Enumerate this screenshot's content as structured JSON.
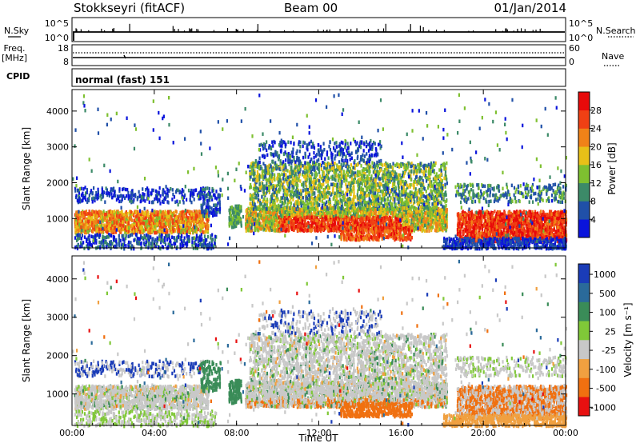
{
  "header": {
    "station": "Stokkseyri (fitACF)",
    "beam": "Beam 00",
    "date": "01/Jan/2014"
  },
  "top_panels": {
    "nsky_label": "N.Sky",
    "nsky_ticks": [
      "10^5",
      "10^0"
    ],
    "nsearch_label": "N.Search",
    "nsearch_ticks": [
      "10^5",
      "10^0"
    ],
    "freq_label_1": "Freq.",
    "freq_label_2": "[MHz]",
    "freq_ticks": [
      "18",
      "8"
    ],
    "nave_label": "Nave",
    "nave_ticks": [
      "60",
      "0"
    ],
    "cpid_label": "CPID",
    "cpid_value": "normal (fast) 151"
  },
  "chart_data": [
    {
      "type": "heatmap",
      "name": "power",
      "ylabel": "Slant Range [km]",
      "xlabel": "Time UT",
      "x_ticks": [
        "00:00",
        "04:00",
        "08:00",
        "12:00",
        "16:00",
        "20:00",
        "00:00"
      ],
      "x_hours": [
        0,
        4,
        8,
        12,
        16,
        20,
        24
      ],
      "xlim_hours": [
        0,
        24
      ],
      "y_ticks": [
        1000,
        2000,
        3000,
        4000
      ],
      "ylim": [
        180,
        4600
      ],
      "colorbar_label": "Power [dB]",
      "colorbar_ticks": [
        "4",
        "8",
        "12",
        "16",
        "20",
        "24",
        "28"
      ],
      "colorbar_values": [
        4,
        8,
        12,
        16,
        20,
        24,
        28
      ],
      "colorbar_range": [
        0,
        32
      ],
      "colors": [
        "#0a14dc",
        "#2050a8",
        "#3c8a68",
        "#7ec030",
        "#e8c018",
        "#f08218",
        "#f04014",
        "#e80a0a"
      ]
    },
    {
      "type": "heatmap",
      "name": "velocity",
      "ylabel": "Slant Range [km]",
      "xlabel": "Time UT",
      "x_ticks": [
        "00:00",
        "04:00",
        "08:00",
        "12:00",
        "16:00",
        "20:00",
        "00:00"
      ],
      "x_hours": [
        0,
        4,
        8,
        12,
        16,
        20,
        24
      ],
      "xlim_hours": [
        0,
        24
      ],
      "y_ticks": [
        1000,
        2000,
        3000,
        4000
      ],
      "ylim": [
        180,
        4600
      ],
      "colorbar_label": "Velocity [m s⁻¹]",
      "colorbar_ticks": [
        "1000",
        "500",
        "100",
        "25",
        "-25",
        "-100",
        "-500",
        "-1000"
      ],
      "colors": [
        "#1a3cb8",
        "#2a6a9a",
        "#3a8c58",
        "#80c838",
        "#c8c8c8",
        "#f0a040",
        "#f07010",
        "#e81010"
      ]
    }
  ]
}
